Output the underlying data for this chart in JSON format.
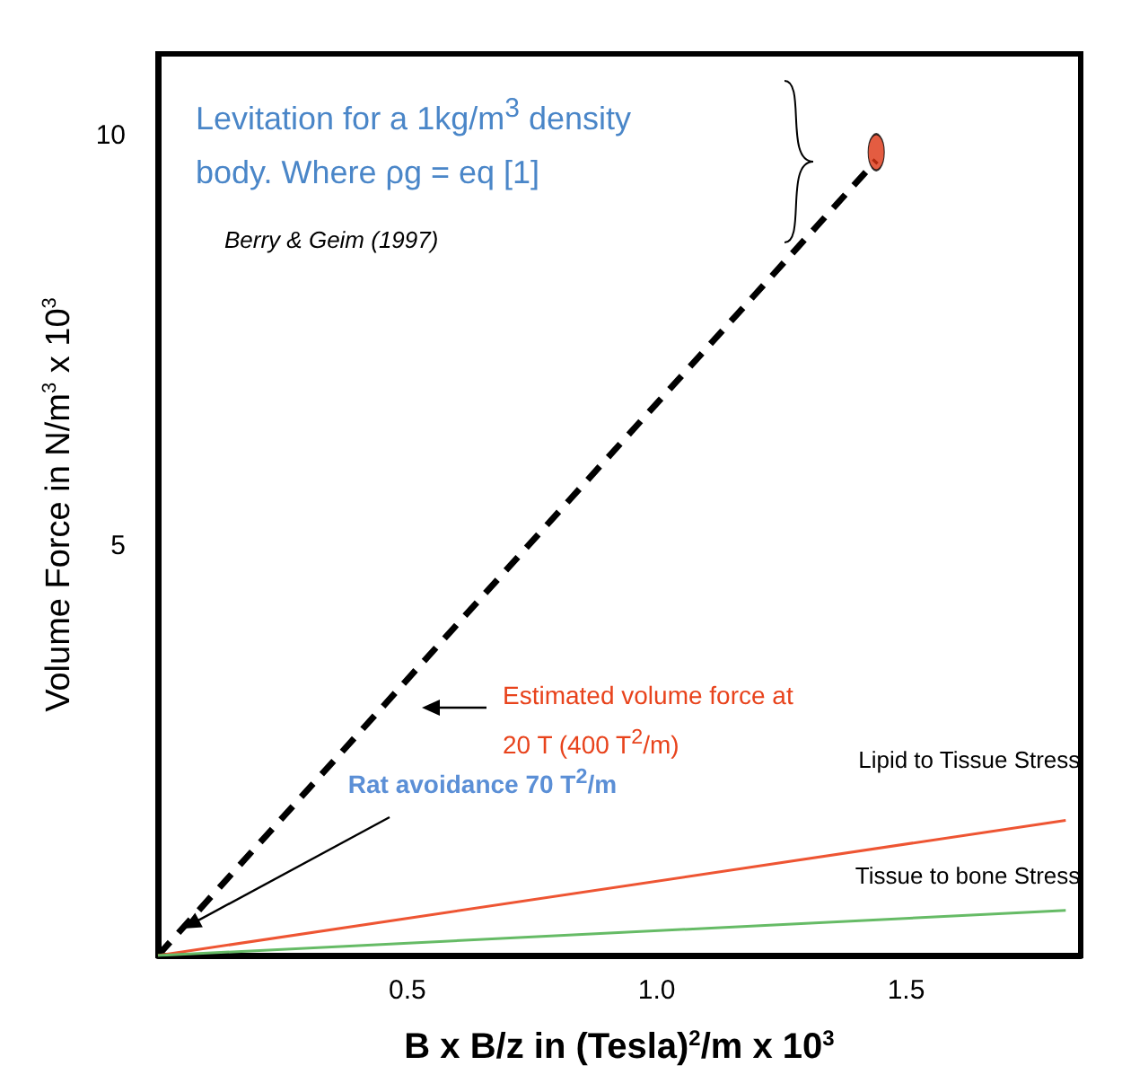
{
  "chart_data": {
    "type": "line",
    "xlabel": "B x B/z in (Tesla)$^{2}$/m x 10$^{3}$",
    "ylabel": "Volume Force in N/m$^{3}$ x 10$^{3}$",
    "xlim": [
      0,
      1.85
    ],
    "xticks": [
      0.5,
      {
        "value": 1,
        "label": "1.0"
      },
      1.5
    ],
    "ylim": [
      0,
      11
    ],
    "yticks": [
      5,
      10
    ],
    "grid": false,
    "legend": false,
    "series": [
      {
        "x": [
          0,
          1.44
        ],
        "values": [
          0,
          9.7
        ],
        "color": "#000000",
        "line_style": "dashed"
      },
      {
        "name": "Lipid to Tissue Stress",
        "x": [
          0,
          1.82
        ],
        "values": [
          0,
          1.65
        ],
        "color": "#ee5533",
        "line_style": "solid"
      },
      {
        "name": "Tissue to bone Stress",
        "x": [
          0,
          1.82
        ],
        "values": [
          0,
          0.55
        ],
        "color": "#66bb66",
        "line_style": "solid"
      },
      {
        "type": "scatter",
        "x": [
          1.44
        ],
        "values": [
          9.8
        ],
        "color": "#dd3311",
        "marker": "circle"
      }
    ],
    "annotations": [
      "Levitation for a 1kg/m$^{3}$ density body. Where ρg = eq [1]",
      "Berry & Geim (1997)",
      "Estimated volume force at 20 T (400 T$^{2}$/m)",
      {
        "text": "Rat avoidance 70 T$^{2}$/m",
        "x": 0.05,
        "y": 0.32
      }
    ]
  }
}
